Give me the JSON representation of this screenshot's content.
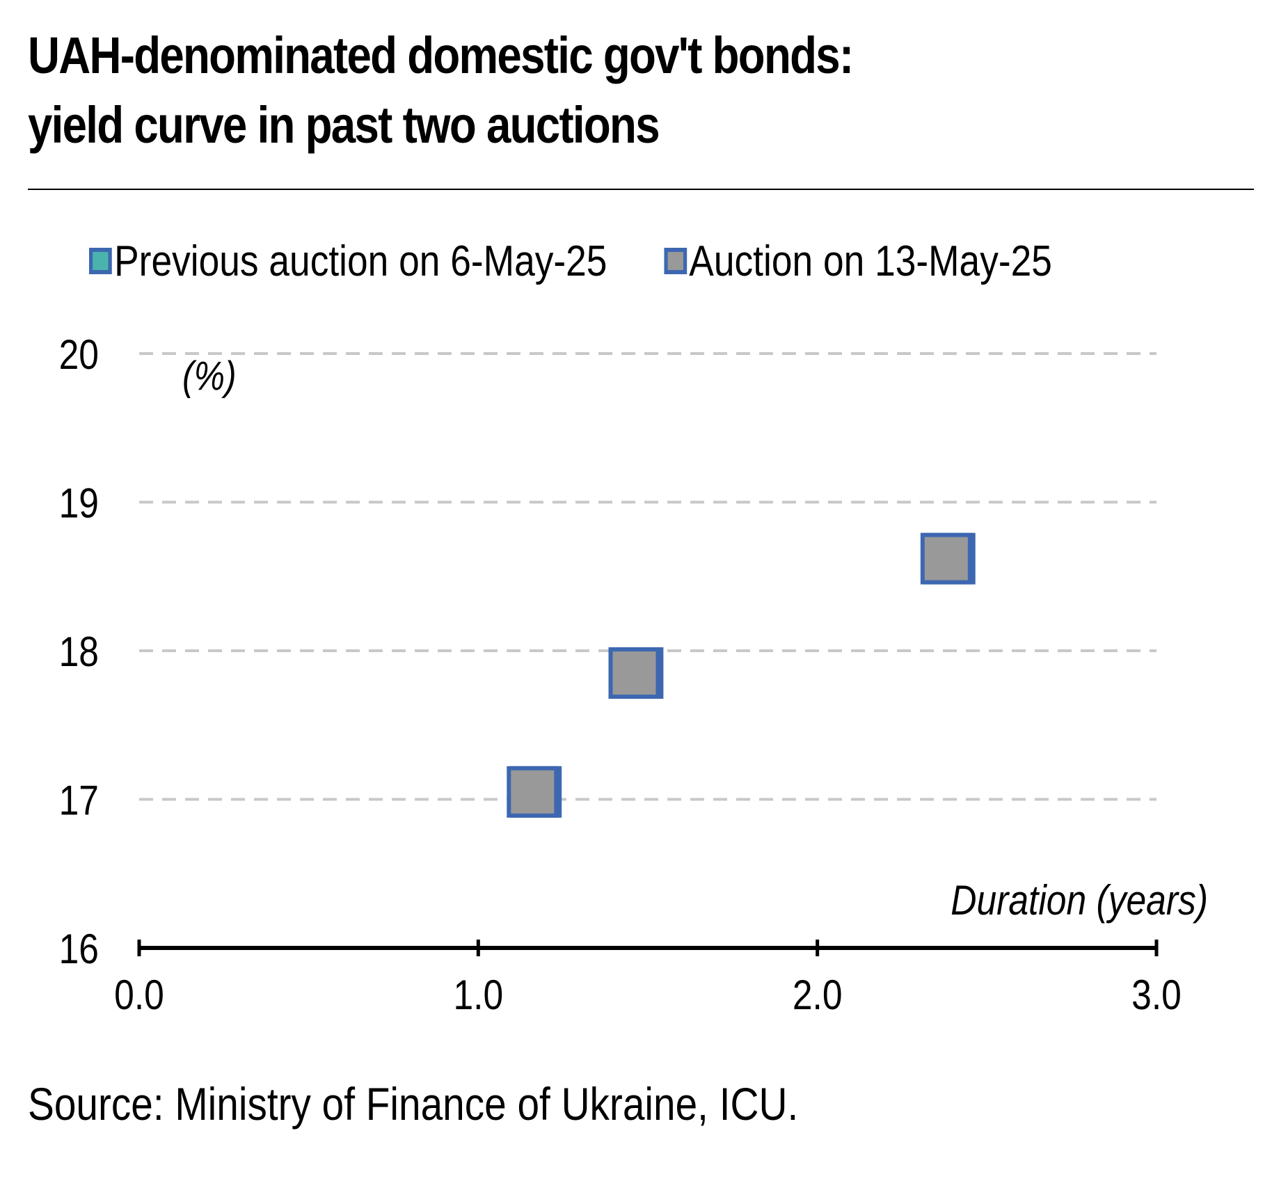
{
  "title_line1": "UAH-denominated domestic gov't bonds:",
  "title_line2": "yield curve in past two auctions",
  "source": "Source: Ministry of Finance of Ukraine, ICU.",
  "colors": {
    "previous_fill": "#4bb3ad",
    "current_fill": "#999999",
    "marker_border": "#3d67b0",
    "gridline": "#c8c8c8",
    "axis": "#000000"
  },
  "chart_data": {
    "type": "scatter",
    "title": "UAH-denominated domestic gov't bonds: yield curve in past two auctions",
    "xlabel": "Duration (years)",
    "ylabel": "(%)",
    "xlim": [
      0,
      3
    ],
    "ylim": [
      16,
      20
    ],
    "x_ticks": [
      "0.0",
      "1.0",
      "2.0",
      "3.0"
    ],
    "y_ticks": [
      "16",
      "17",
      "18",
      "19",
      "20"
    ],
    "y_grid": true,
    "legend_position": "top",
    "series": [
      {
        "name": "Previous auction on 6-May-25",
        "color": "#4bb3ad",
        "points": [
          {
            "x": 1.17,
            "y": 17.05
          },
          {
            "x": 1.47,
            "y": 17.85
          },
          {
            "x": 2.39,
            "y": 18.62
          }
        ]
      },
      {
        "name": "Auction on 13-May-25",
        "color": "#999999",
        "points": [
          {
            "x": 1.16,
            "y": 17.05
          },
          {
            "x": 1.46,
            "y": 17.85
          },
          {
            "x": 2.38,
            "y": 18.62
          }
        ]
      }
    ]
  }
}
